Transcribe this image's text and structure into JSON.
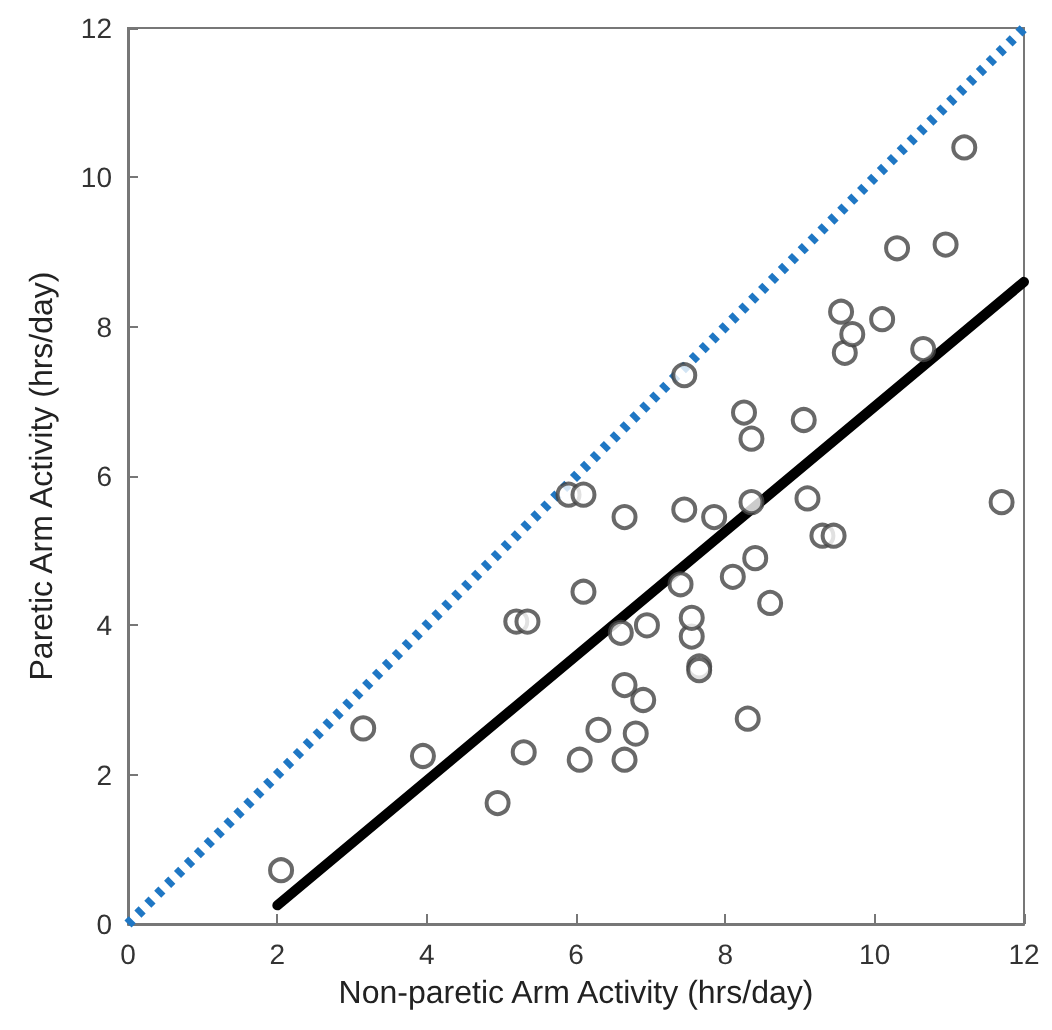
{
  "chart_data": {
    "type": "scatter",
    "xlabel": "Non-paretic Arm Activity (hrs/day)",
    "ylabel": "Paretic Arm Activity (hrs/day)",
    "xlim": [
      0,
      12
    ],
    "ylim": [
      0,
      12
    ],
    "xticks": [
      0,
      2,
      4,
      6,
      8,
      10,
      12
    ],
    "yticks": [
      0,
      2,
      4,
      6,
      8,
      10,
      12
    ],
    "grid": false,
    "series": [
      {
        "color": "#444444",
        "marker": "circle",
        "x": [
          2.05,
          3.15,
          3.95,
          4.95,
          5.2,
          5.35,
          5.3,
          5.9,
          6.1,
          6.1,
          6.05,
          6.3,
          6.6,
          6.65,
          6.65,
          6.65,
          6.8,
          6.9,
          6.95,
          7.4,
          7.45,
          7.45,
          7.55,
          7.55,
          7.65,
          7.65,
          7.85,
          8.1,
          8.25,
          8.35,
          8.35,
          8.3,
          8.4,
          8.6,
          9.05,
          9.1,
          9.3,
          9.45,
          9.55,
          9.6,
          9.7,
          10.1,
          10.3,
          10.65,
          10.95,
          11.2,
          11.7
        ],
        "values": [
          0.72,
          2.62,
          2.25,
          1.62,
          4.05,
          4.05,
          2.3,
          5.75,
          5.75,
          4.45,
          2.2,
          2.6,
          3.9,
          3.2,
          2.2,
          5.45,
          2.55,
          3.0,
          4.0,
          4.55,
          7.35,
          5.55,
          3.85,
          4.1,
          3.45,
          3.4,
          5.45,
          4.65,
          6.85,
          6.5,
          5.65,
          2.75,
          4.9,
          4.3,
          6.75,
          5.7,
          5.2,
          5.2,
          8.2,
          7.65,
          7.9,
          8.1,
          9.05,
          7.7,
          9.1,
          10.4,
          5.65
        ]
      },
      {
        "type": "line",
        "color": "#1f77c4",
        "line_style": "dotted",
        "marker": "none",
        "x": [
          0,
          12
        ],
        "values": [
          0,
          12
        ]
      },
      {
        "type": "line",
        "color": "#000000",
        "line_style": "solid",
        "marker": "none",
        "x": [
          2,
          12
        ],
        "values": [
          0.25,
          8.6
        ]
      }
    ]
  }
}
